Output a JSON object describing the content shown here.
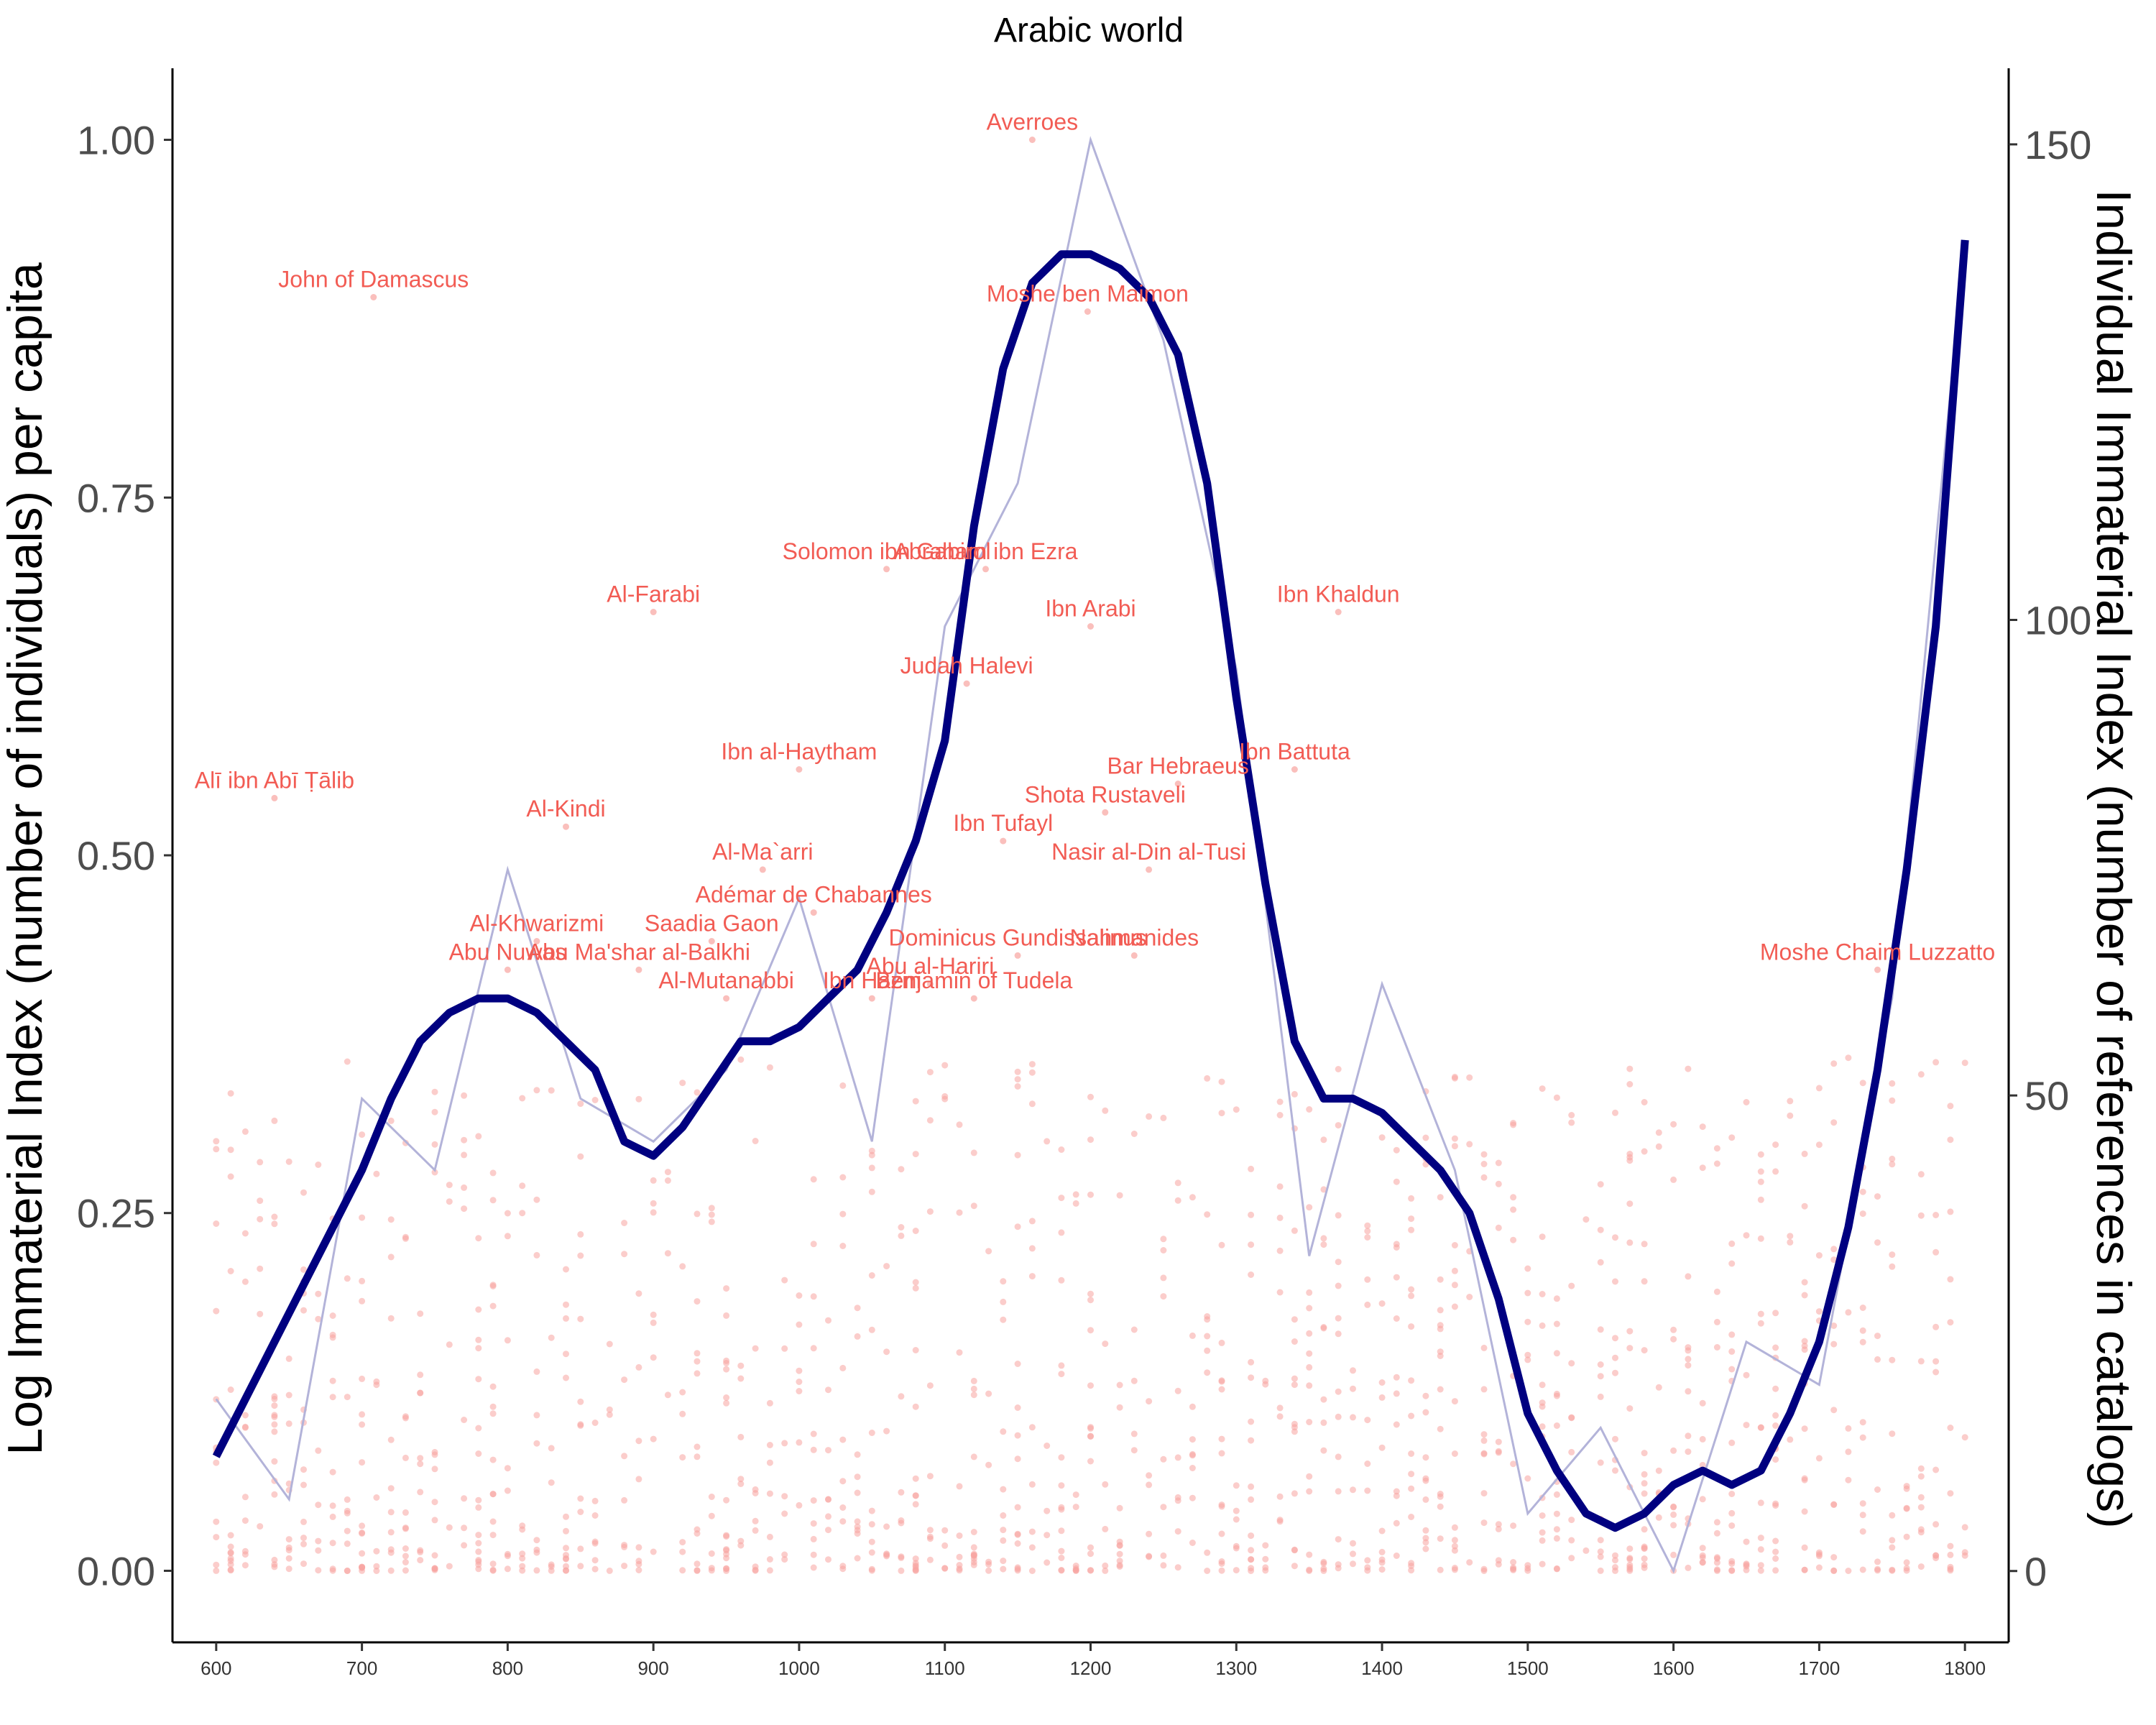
{
  "chart_data": {
    "type": "line",
    "title": "Arabic world",
    "xlabel": "",
    "ylabel_left": "Log Immaterial Index (number of individuals) per capita",
    "ylabel_right": "Individual Immaterial Index (number of references in catalogs)",
    "xlim": [
      570,
      1830
    ],
    "ylim_left": [
      -0.05,
      1.05
    ],
    "ylim_right": [
      -7.5,
      158
    ],
    "x_ticks": [
      600,
      700,
      800,
      900,
      1000,
      1100,
      1200,
      1300,
      1400,
      1500,
      1600,
      1700,
      1800
    ],
    "y_left_ticks": [
      "0.00",
      "0.25",
      "0.50",
      "0.75",
      "1.00"
    ],
    "y_left_tick_values": [
      0,
      0.25,
      0.5,
      0.75,
      1.0
    ],
    "y_right_ticks": [
      "0",
      "50",
      "100",
      "150"
    ],
    "y_right_tick_values": [
      0,
      50,
      100,
      150
    ],
    "grid": false,
    "colors": {
      "smooth": "#000080",
      "raw": "#b3b3d9",
      "points": "#f8a4a0",
      "annotations": "#f25c54"
    },
    "series": [
      {
        "style": "thin",
        "x": [
          600,
          650,
          700,
          750,
          800,
          850,
          900,
          950,
          1000,
          1050,
          1100,
          1150,
          1200,
          1250,
          1300,
          1350,
          1400,
          1450,
          1500,
          1550,
          1600,
          1650,
          1700,
          1750,
          1800
        ],
        "y": [
          0.12,
          0.05,
          0.33,
          0.28,
          0.49,
          0.33,
          0.3,
          0.35,
          0.47,
          0.3,
          0.66,
          0.76,
          1.0,
          0.86,
          0.63,
          0.22,
          0.41,
          0.28,
          0.04,
          0.1,
          0.0,
          0.16,
          0.13,
          0.4,
          0.93
        ]
      },
      {
        "style": "thick",
        "x": [
          600,
          620,
          640,
          660,
          680,
          700,
          720,
          740,
          760,
          780,
          800,
          820,
          840,
          860,
          880,
          900,
          920,
          940,
          960,
          980,
          1000,
          1020,
          1040,
          1060,
          1080,
          1100,
          1120,
          1140,
          1160,
          1180,
          1200,
          1220,
          1240,
          1260,
          1280,
          1300,
          1320,
          1340,
          1360,
          1380,
          1400,
          1420,
          1440,
          1460,
          1480,
          1500,
          1520,
          1540,
          1560,
          1580,
          1600,
          1620,
          1640,
          1660,
          1680,
          1700,
          1720,
          1740,
          1760,
          1780,
          1800
        ],
        "y": [
          0.08,
          0.12,
          0.16,
          0.2,
          0.24,
          0.28,
          0.33,
          0.37,
          0.39,
          0.4,
          0.4,
          0.39,
          0.37,
          0.35,
          0.3,
          0.29,
          0.31,
          0.34,
          0.37,
          0.37,
          0.38,
          0.4,
          0.42,
          0.46,
          0.51,
          0.58,
          0.73,
          0.84,
          0.9,
          0.92,
          0.92,
          0.91,
          0.89,
          0.85,
          0.76,
          0.61,
          0.48,
          0.37,
          0.33,
          0.33,
          0.32,
          0.3,
          0.28,
          0.25,
          0.19,
          0.11,
          0.07,
          0.04,
          0.03,
          0.04,
          0.06,
          0.07,
          0.06,
          0.07,
          0.11,
          0.16,
          0.24,
          0.35,
          0.49,
          0.66,
          0.93
        ]
      }
    ],
    "labeled_points": [
      {
        "label": "Averroes",
        "x": 1160,
        "y": 1.0
      },
      {
        "label": "John of Damascus",
        "x": 708,
        "y": 0.89
      },
      {
        "label": "Moshe ben Maimon",
        "x": 1198,
        "y": 0.88
      },
      {
        "label": "Solomon ibn Gabirol",
        "x": 1060,
        "y": 0.7
      },
      {
        "label": "Abraham ibn Ezra",
        "x": 1128,
        "y": 0.7
      },
      {
        "label": "Ibn Khaldun",
        "x": 1370,
        "y": 0.67
      },
      {
        "label": "Al-Farabi",
        "x": 900,
        "y": 0.67
      },
      {
        "label": "Ibn Arabi",
        "x": 1200,
        "y": 0.66
      },
      {
        "label": "Judah Halevi",
        "x": 1115,
        "y": 0.62
      },
      {
        "label": "Ibn Battuta",
        "x": 1340,
        "y": 0.56
      },
      {
        "label": "Alī ibn Abī Ṭālib",
        "x": 640,
        "y": 0.54
      },
      {
        "label": "Bar Hebraeus",
        "x": 1260,
        "y": 0.55
      },
      {
        "label": "Ibn al-Haytham",
        "x": 1000,
        "y": 0.56
      },
      {
        "label": "Al-Kindi",
        "x": 840,
        "y": 0.52
      },
      {
        "label": "Ibn Tufayl",
        "x": 1140,
        "y": 0.51
      },
      {
        "label": "Shota Rustaveli",
        "x": 1210,
        "y": 0.53
      },
      {
        "label": "Al-Ma`arri",
        "x": 975,
        "y": 0.49
      },
      {
        "label": "Adémar de Chabannes",
        "x": 1010,
        "y": 0.46
      },
      {
        "label": "Nasir al-Din al-Tusi",
        "x": 1240,
        "y": 0.49
      },
      {
        "label": "Al-Khwarizmi",
        "x": 820,
        "y": 0.44
      },
      {
        "label": "Saadia Gaon",
        "x": 940,
        "y": 0.44
      },
      {
        "label": "Dominicus Gundissalinus",
        "x": 1150,
        "y": 0.43
      },
      {
        "label": "Abu Nuwas",
        "x": 800,
        "y": 0.42
      },
      {
        "label": "Abu al-Hariri",
        "x": 1090,
        "y": 0.41
      },
      {
        "label": "Abu Ma'shar al-Balkhi",
        "x": 890,
        "y": 0.42
      },
      {
        "label": "Nahmanides",
        "x": 1230,
        "y": 0.43
      },
      {
        "label": "Moshe Chaim Luzzatto",
        "x": 1740,
        "y": 0.42
      },
      {
        "label": "Al-Mutanabbi",
        "x": 950,
        "y": 0.4
      },
      {
        "label": "Ibn Hazm",
        "x": 1050,
        "y": 0.4
      },
      {
        "label": "Benjamin of Tudela",
        "x": 1120,
        "y": 0.4
      }
    ]
  }
}
